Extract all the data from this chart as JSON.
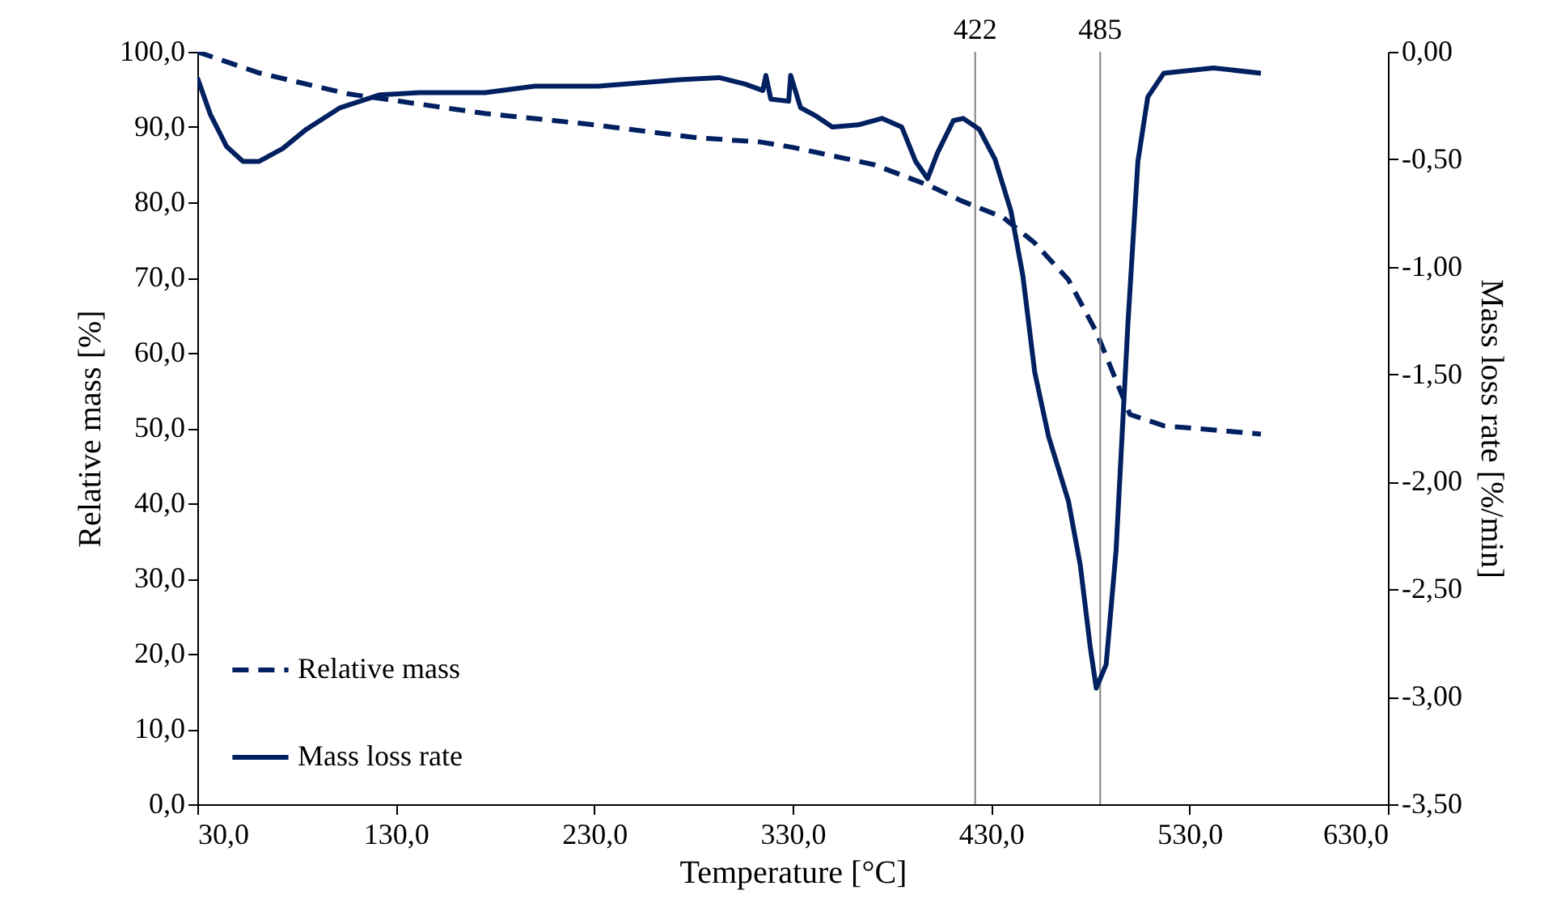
{
  "chart_data": {
    "type": "line",
    "xlabel": "Temperature [°C]",
    "ylabel": "Relative mass [%]",
    "y2label": "Mass loss rate [%/min]",
    "xlim": [
      30,
      630
    ],
    "xticks": [
      {
        "value": 30,
        "label": "30,0"
      },
      {
        "value": 130,
        "label": "130,0"
      },
      {
        "value": 230,
        "label": "230,0"
      },
      {
        "value": 330,
        "label": "330,0"
      },
      {
        "value": 430,
        "label": "430,0"
      },
      {
        "value": 530,
        "label": "530,0"
      },
      {
        "value": 630,
        "label": "630,0"
      }
    ],
    "ylim": [
      0,
      100
    ],
    "yticks": [
      {
        "value": 0,
        "label": "0,0"
      },
      {
        "value": 10,
        "label": "10,0"
      },
      {
        "value": 20,
        "label": "20,0"
      },
      {
        "value": 30,
        "label": "30,0"
      },
      {
        "value": 40,
        "label": "40,0"
      },
      {
        "value": 50,
        "label": "50,0"
      },
      {
        "value": 60,
        "label": "60,0"
      },
      {
        "value": 70,
        "label": "70,0"
      },
      {
        "value": 80,
        "label": "80,0"
      },
      {
        "value": 90,
        "label": "90,0"
      },
      {
        "value": 100,
        "label": "100,0"
      }
    ],
    "y2lim": [
      -3.5,
      0
    ],
    "y2ticks": [
      {
        "value": -3.5,
        "label": "-3,50"
      },
      {
        "value": -3,
        "label": "-3,00"
      },
      {
        "value": -2.5,
        "label": "-2,50"
      },
      {
        "value": -2,
        "label": "-2,00"
      },
      {
        "value": -1.5,
        "label": "-1,50"
      },
      {
        "value": -1,
        "label": "-1,00"
      },
      {
        "value": -0.5,
        "label": "-0,50"
      },
      {
        "value": 0,
        "label": "0,00"
      }
    ],
    "grid": false,
    "legend": "bottom left",
    "marker": "none",
    "ref_lines": [
      {
        "axis": "x",
        "value": 422,
        "label": "422",
        "color": "#7f7f7f"
      },
      {
        "axis": "x",
        "value": 485,
        "label": "485",
        "color": "#7f7f7f"
      }
    ],
    "series": [
      {
        "name": "Relative mass",
        "color": "#002060",
        "line_style": "dashed",
        "x": [
          30,
          61,
          106,
          130,
          175,
          230,
          281,
          314,
          330,
          371,
          399,
          415,
          436,
          452,
          469,
          483,
          500,
          517,
          566
        ],
        "values": [
          100,
          97.2,
          94.4,
          93.5,
          91.8,
          90.3,
          88.6,
          88,
          87.3,
          85,
          82.2,
          80.2,
          78,
          74.6,
          69.7,
          62.8,
          51.8,
          50.3,
          49.2
        ]
      },
      {
        "name": "Mass loss rate",
        "color": "#002060",
        "line_style": "solid",
        "axis": "y2",
        "x": [
          30,
          36.5,
          44.7,
          53,
          61,
          73,
          85,
          102,
          122,
          142,
          175,
          200,
          232,
          273,
          293,
          306,
          315,
          316.5,
          319,
          328,
          329,
          334,
          342,
          350,
          363,
          375,
          385,
          392,
          398,
          403,
          411,
          416,
          424,
          432,
          440,
          446,
          452,
          459,
          469,
          475,
          480,
          483,
          488,
          493,
          499,
          504,
          509,
          517,
          542,
          566
        ],
        "values": [
          -0.12,
          -0.29,
          -0.44,
          -0.51,
          -0.51,
          -0.45,
          -0.36,
          -0.26,
          -0.2,
          -0.19,
          -0.19,
          -0.16,
          -0.16,
          -0.13,
          -0.12,
          -0.15,
          -0.18,
          -0.11,
          -0.22,
          -0.23,
          -0.11,
          -0.26,
          -0.3,
          -0.35,
          -0.34,
          -0.31,
          -0.35,
          -0.51,
          -0.59,
          -0.47,
          -0.32,
          -0.31,
          -0.36,
          -0.5,
          -0.74,
          -1.04,
          -1.49,
          -1.79,
          -2.09,
          -2.39,
          -2.77,
          -2.96,
          -2.85,
          -2.32,
          -1.26,
          -0.51,
          -0.21,
          -0.1,
          -0.075,
          -0.1
        ]
      }
    ]
  }
}
